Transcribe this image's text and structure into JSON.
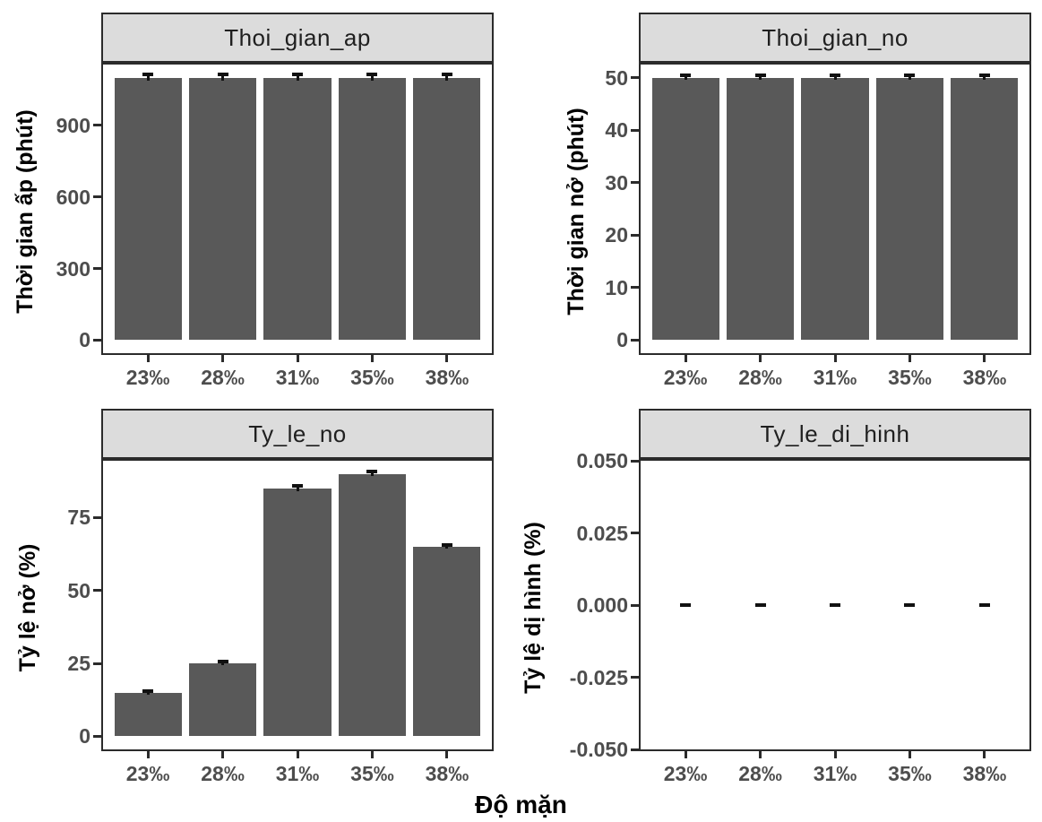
{
  "figure": {
    "xlabel": "Độ mặn",
    "colors": {
      "bar": "#595959",
      "error": "#111111",
      "panel_border": "#2b2b2b",
      "strip_bg": "#dcdcdc",
      "strip_text": "#1f1f1f",
      "tick_text": "#4d4d4d",
      "axis_title": "#000000",
      "background": "#ffffff"
    }
  },
  "chart_data": [
    {
      "type": "bar",
      "facet_label": "Thoi_gian_ap",
      "ylabel": "Thời gian ấp  (phút)",
      "categories": [
        "23‰",
        "28‰",
        "31‰",
        "35‰",
        "38‰"
      ],
      "values": [
        1100,
        1100,
        1100,
        1100,
        1100
      ],
      "errors": [
        12,
        12,
        12,
        12,
        12
      ],
      "ylim": [
        -55,
        1155
      ],
      "yticks": [
        {
          "v": 0,
          "label": "0"
        },
        {
          "v": 300,
          "label": "300"
        },
        {
          "v": 600,
          "label": "600"
        },
        {
          "v": 900,
          "label": "900"
        }
      ],
      "grid": false,
      "legend": false
    },
    {
      "type": "bar",
      "facet_label": "Thoi_gian_no",
      "ylabel": "Thời gian nở  (phút)",
      "categories": [
        "23‰",
        "28‰",
        "31‰",
        "35‰",
        "38‰"
      ],
      "values": [
        50,
        50,
        50,
        50,
        50
      ],
      "errors": [
        0.4,
        0.4,
        0.4,
        0.4,
        0.4
      ],
      "ylim": [
        -2.5,
        52.5
      ],
      "yticks": [
        {
          "v": 0,
          "label": "0"
        },
        {
          "v": 10,
          "label": "10"
        },
        {
          "v": 20,
          "label": "20"
        },
        {
          "v": 30,
          "label": "30"
        },
        {
          "v": 40,
          "label": "40"
        },
        {
          "v": 50,
          "label": "50"
        }
      ],
      "grid": false,
      "legend": false
    },
    {
      "type": "bar",
      "facet_label": "Ty_le_no",
      "ylabel": "Tỷ lệ nở  (%)",
      "categories": [
        "23‰",
        "28‰",
        "31‰",
        "35‰",
        "38‰"
      ],
      "values": [
        15,
        25,
        85,
        90,
        65
      ],
      "errors": [
        0.6,
        0.6,
        0.8,
        0.8,
        0.6
      ],
      "ylim": [
        -4.5,
        94.5
      ],
      "yticks": [
        {
          "v": 0,
          "label": "0"
        },
        {
          "v": 25,
          "label": "25"
        },
        {
          "v": 50,
          "label": "50"
        },
        {
          "v": 75,
          "label": "75"
        }
      ],
      "grid": false,
      "legend": false
    },
    {
      "type": "bar",
      "facet_label": "Ty_le_di_hinh",
      "ylabel": "Tỷ lệ dị hình  (%)",
      "categories": [
        "23‰",
        "28‰",
        "31‰",
        "35‰",
        "38‰"
      ],
      "values": [
        0,
        0,
        0,
        0,
        0
      ],
      "errors": [
        0,
        0,
        0,
        0,
        0
      ],
      "ylim": [
        -0.05,
        0.05
      ],
      "yticks": [
        {
          "v": -0.05,
          "label": "-0.050"
        },
        {
          "v": -0.025,
          "label": "-0.025"
        },
        {
          "v": 0,
          "label": "0.000"
        },
        {
          "v": 0.025,
          "label": "0.025"
        },
        {
          "v": 0.05,
          "label": "0.050"
        }
      ],
      "grid": false,
      "legend": false
    }
  ]
}
